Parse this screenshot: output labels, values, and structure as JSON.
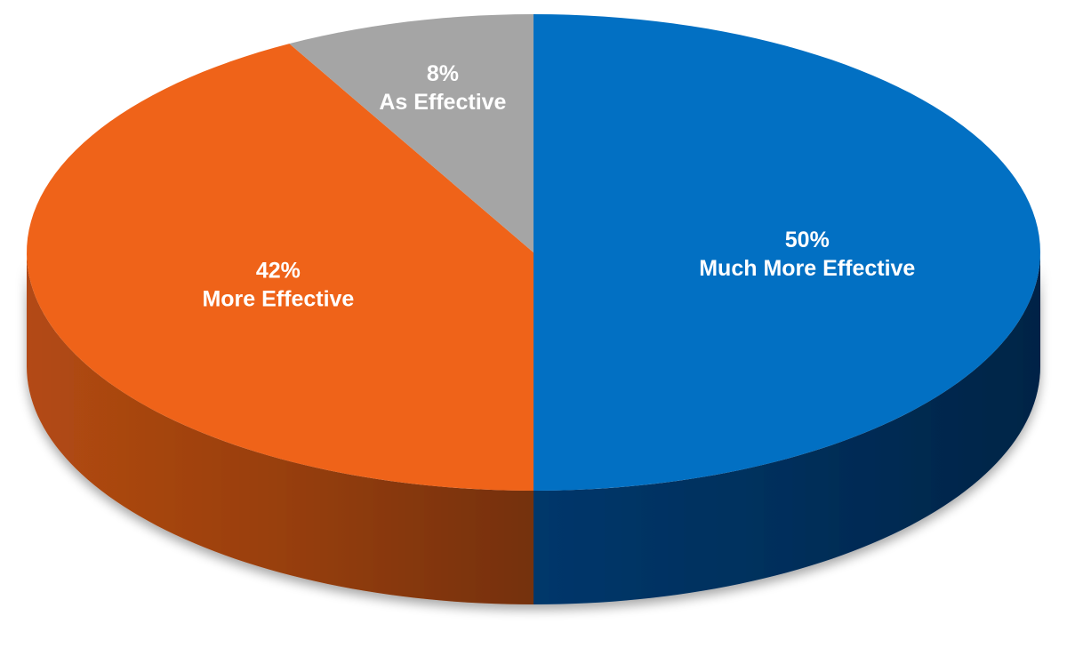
{
  "chart_data": {
    "type": "pie",
    "style": "3d",
    "slices": [
      {
        "name": "Much More Effective",
        "value": 50,
        "percent_label": "50%",
        "color": "#0270c3",
        "side_color": "#01376b"
      },
      {
        "name": "More Effective",
        "value": 42,
        "percent_label": "42%",
        "color": "#ef6319",
        "side_color": "#b34a12"
      },
      {
        "name": "As Effective",
        "value": 8,
        "percent_label": "8%",
        "color": "#a5a5a5",
        "side_color": "#7a7a7a"
      }
    ],
    "title": "",
    "legend": "none",
    "labels": "inside"
  }
}
